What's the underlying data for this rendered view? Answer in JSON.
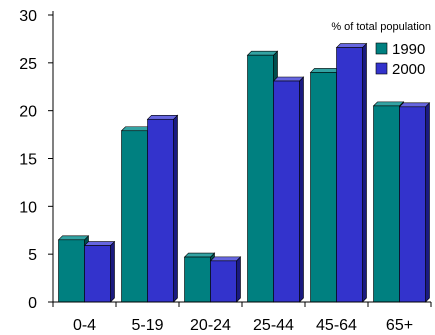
{
  "chart_data": {
    "type": "bar",
    "annotation": "% of total population",
    "categories": [
      "0-4",
      "5-19",
      "20-24",
      "25-44",
      "45-64",
      "65+"
    ],
    "series": [
      {
        "name": "1990",
        "values": [
          6.5,
          17.9,
          4.7,
          25.8,
          24.0,
          20.5
        ],
        "color": "#008080",
        "side_color": "#004d4d",
        "top_color": "#33a3a3"
      },
      {
        "name": "2000",
        "values": [
          5.9,
          19.1,
          4.3,
          23.1,
          26.6,
          20.4
        ],
        "color": "#3333cc",
        "side_color": "#1a1a80",
        "top_color": "#6666e0"
      }
    ],
    "ylim": [
      0,
      30
    ],
    "yticks": [
      0,
      5,
      10,
      15,
      20,
      25,
      30
    ],
    "legend_position": "right",
    "grid": false
  }
}
